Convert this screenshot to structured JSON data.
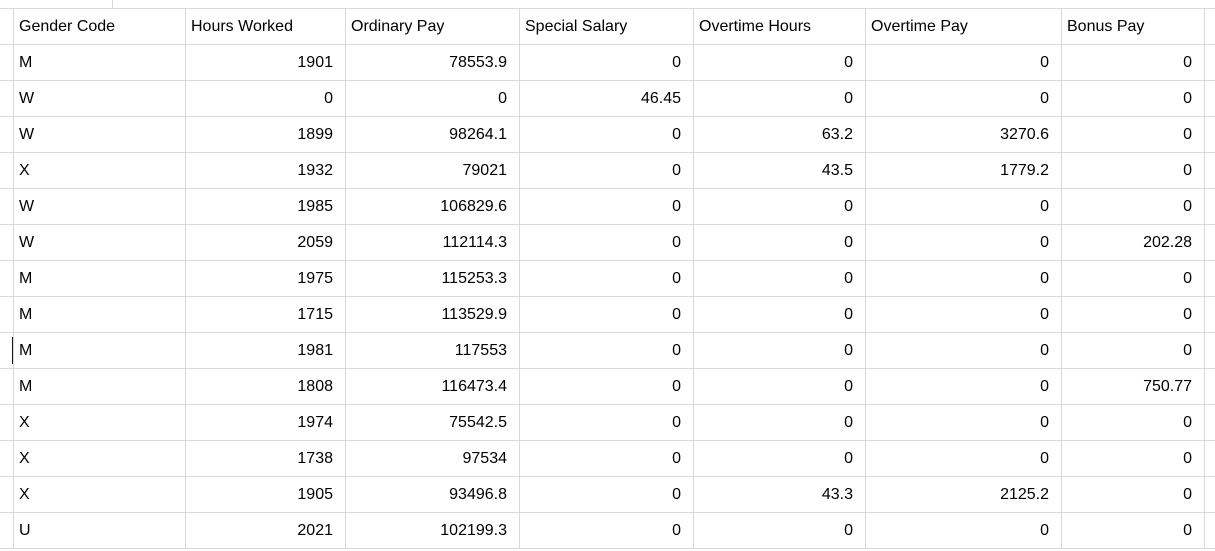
{
  "colors": {
    "gridline": "#d9d9d9",
    "background": "#ffffff",
    "text": "#000000"
  },
  "table": {
    "columns": [
      "Gender Code",
      "Hours Worked",
      "Ordinary Pay",
      "Special Salary",
      "Overtime Hours",
      "Overtime Pay",
      "Bonus Pay"
    ],
    "rows": [
      [
        "M",
        "1901",
        "78553.9",
        "0",
        "0",
        "0",
        "0"
      ],
      [
        "W",
        "0",
        "0",
        "46.45",
        "0",
        "0",
        "0"
      ],
      [
        "W",
        "1899",
        "98264.1",
        "0",
        "63.2",
        "3270.6",
        "0"
      ],
      [
        "X",
        "1932",
        "79021",
        "0",
        "43.5",
        "1779.2",
        "0"
      ],
      [
        "W",
        "1985",
        "106829.6",
        "0",
        "0",
        "0",
        "0"
      ],
      [
        "W",
        "2059",
        "112114.3",
        "0",
        "0",
        "0",
        "202.28"
      ],
      [
        "M",
        "1975",
        "115253.3",
        "0",
        "0",
        "0",
        "0"
      ],
      [
        "M",
        "1715",
        "113529.9",
        "0",
        "0",
        "0",
        "0"
      ],
      [
        "M",
        "1981",
        "117553",
        "0",
        "0",
        "0",
        "0"
      ],
      [
        "M",
        "1808",
        "116473.4",
        "0",
        "0",
        "0",
        "750.77"
      ],
      [
        "X",
        "1974",
        "75542.5",
        "0",
        "0",
        "0",
        "0"
      ],
      [
        "X",
        "1738",
        "97534",
        "0",
        "0",
        "0",
        "0"
      ],
      [
        "X",
        "1905",
        "93496.8",
        "0",
        "43.3",
        "2125.2",
        "0"
      ],
      [
        "U",
        "2021",
        "102199.3",
        "0",
        "0",
        "0",
        "0"
      ]
    ]
  }
}
